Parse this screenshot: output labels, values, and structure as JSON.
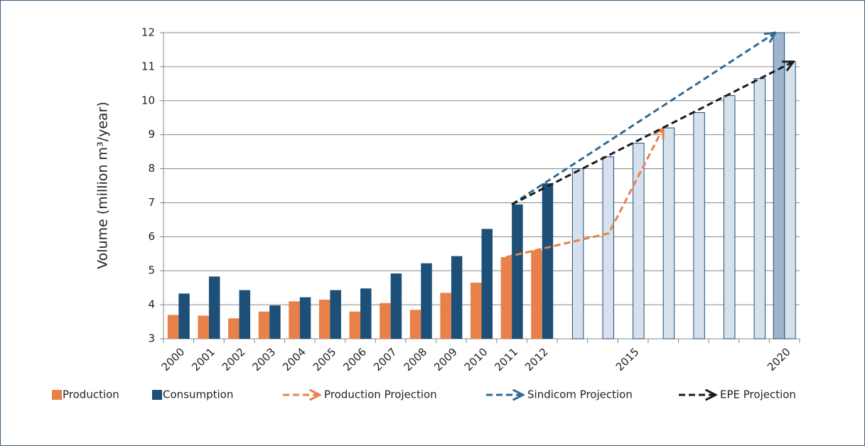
{
  "chart_data": {
    "type": "bar",
    "y_label": "Volume (million m³/year)",
    "categories": [
      "2000",
      "2001",
      "2002",
      "2003",
      "2004",
      "2005",
      "2006",
      "2007",
      "2008",
      "2009",
      "2010",
      "2011",
      "2012",
      null,
      null,
      "2015",
      null,
      null,
      null,
      null,
      "2020"
    ],
    "series": [
      {
        "name": "Production",
        "color": "#e8804a",
        "slot": "left",
        "values": [
          3.7,
          3.68,
          3.6,
          3.8,
          4.1,
          4.15,
          3.8,
          4.05,
          3.85,
          4.35,
          4.65,
          5.4,
          5.6,
          null,
          null,
          null,
          null,
          null,
          null,
          null,
          null
        ]
      },
      {
        "name": "Consumption",
        "color": "#1d4f77",
        "slot": "right",
        "values": [
          4.33,
          4.83,
          4.43,
          3.98,
          4.22,
          4.43,
          4.48,
          4.92,
          5.22,
          5.43,
          6.23,
          6.95,
          7.57,
          null,
          null,
          null,
          null,
          null,
          null,
          null,
          null
        ]
      },
      {
        "color": "#d7e1ed",
        "stroke": "#1d4f77",
        "slot": "right",
        "values": [
          null,
          null,
          null,
          null,
          null,
          null,
          null,
          null,
          null,
          null,
          null,
          null,
          null,
          8.0,
          8.35,
          8.75,
          9.2,
          9.65,
          10.15,
          10.65,
          11.15
        ]
      },
      {
        "color": "#9fb5cd",
        "stroke": "#1d4f77",
        "slot": "left",
        "values": [
          null,
          null,
          null,
          null,
          null,
          null,
          null,
          null,
          null,
          null,
          null,
          null,
          null,
          null,
          null,
          null,
          null,
          null,
          null,
          null,
          12
        ]
      }
    ],
    "projections": [
      {
        "name": "Production Projection",
        "color": "#e8804a",
        "x": [
          2010.8,
          2014.2,
          2016.0
        ],
        "values": [
          5.4,
          6.1,
          9.2
        ]
      },
      {
        "name": "Sindicom Projection",
        "color": "#2e6a94",
        "x": [
          2011.0,
          2019.7
        ],
        "values": [
          6.95,
          12.0
        ]
      },
      {
        "name": "EPE Projection",
        "color": "#1a1a1a",
        "x": [
          2011.0,
          2020.3
        ],
        "values": [
          6.95,
          11.15
        ]
      }
    ],
    "x_start": 2000,
    "ylim": [
      3,
      12
    ],
    "yticks": [
      3,
      4,
      5,
      6,
      7,
      8,
      9,
      10,
      11,
      12
    ],
    "grid": true
  }
}
